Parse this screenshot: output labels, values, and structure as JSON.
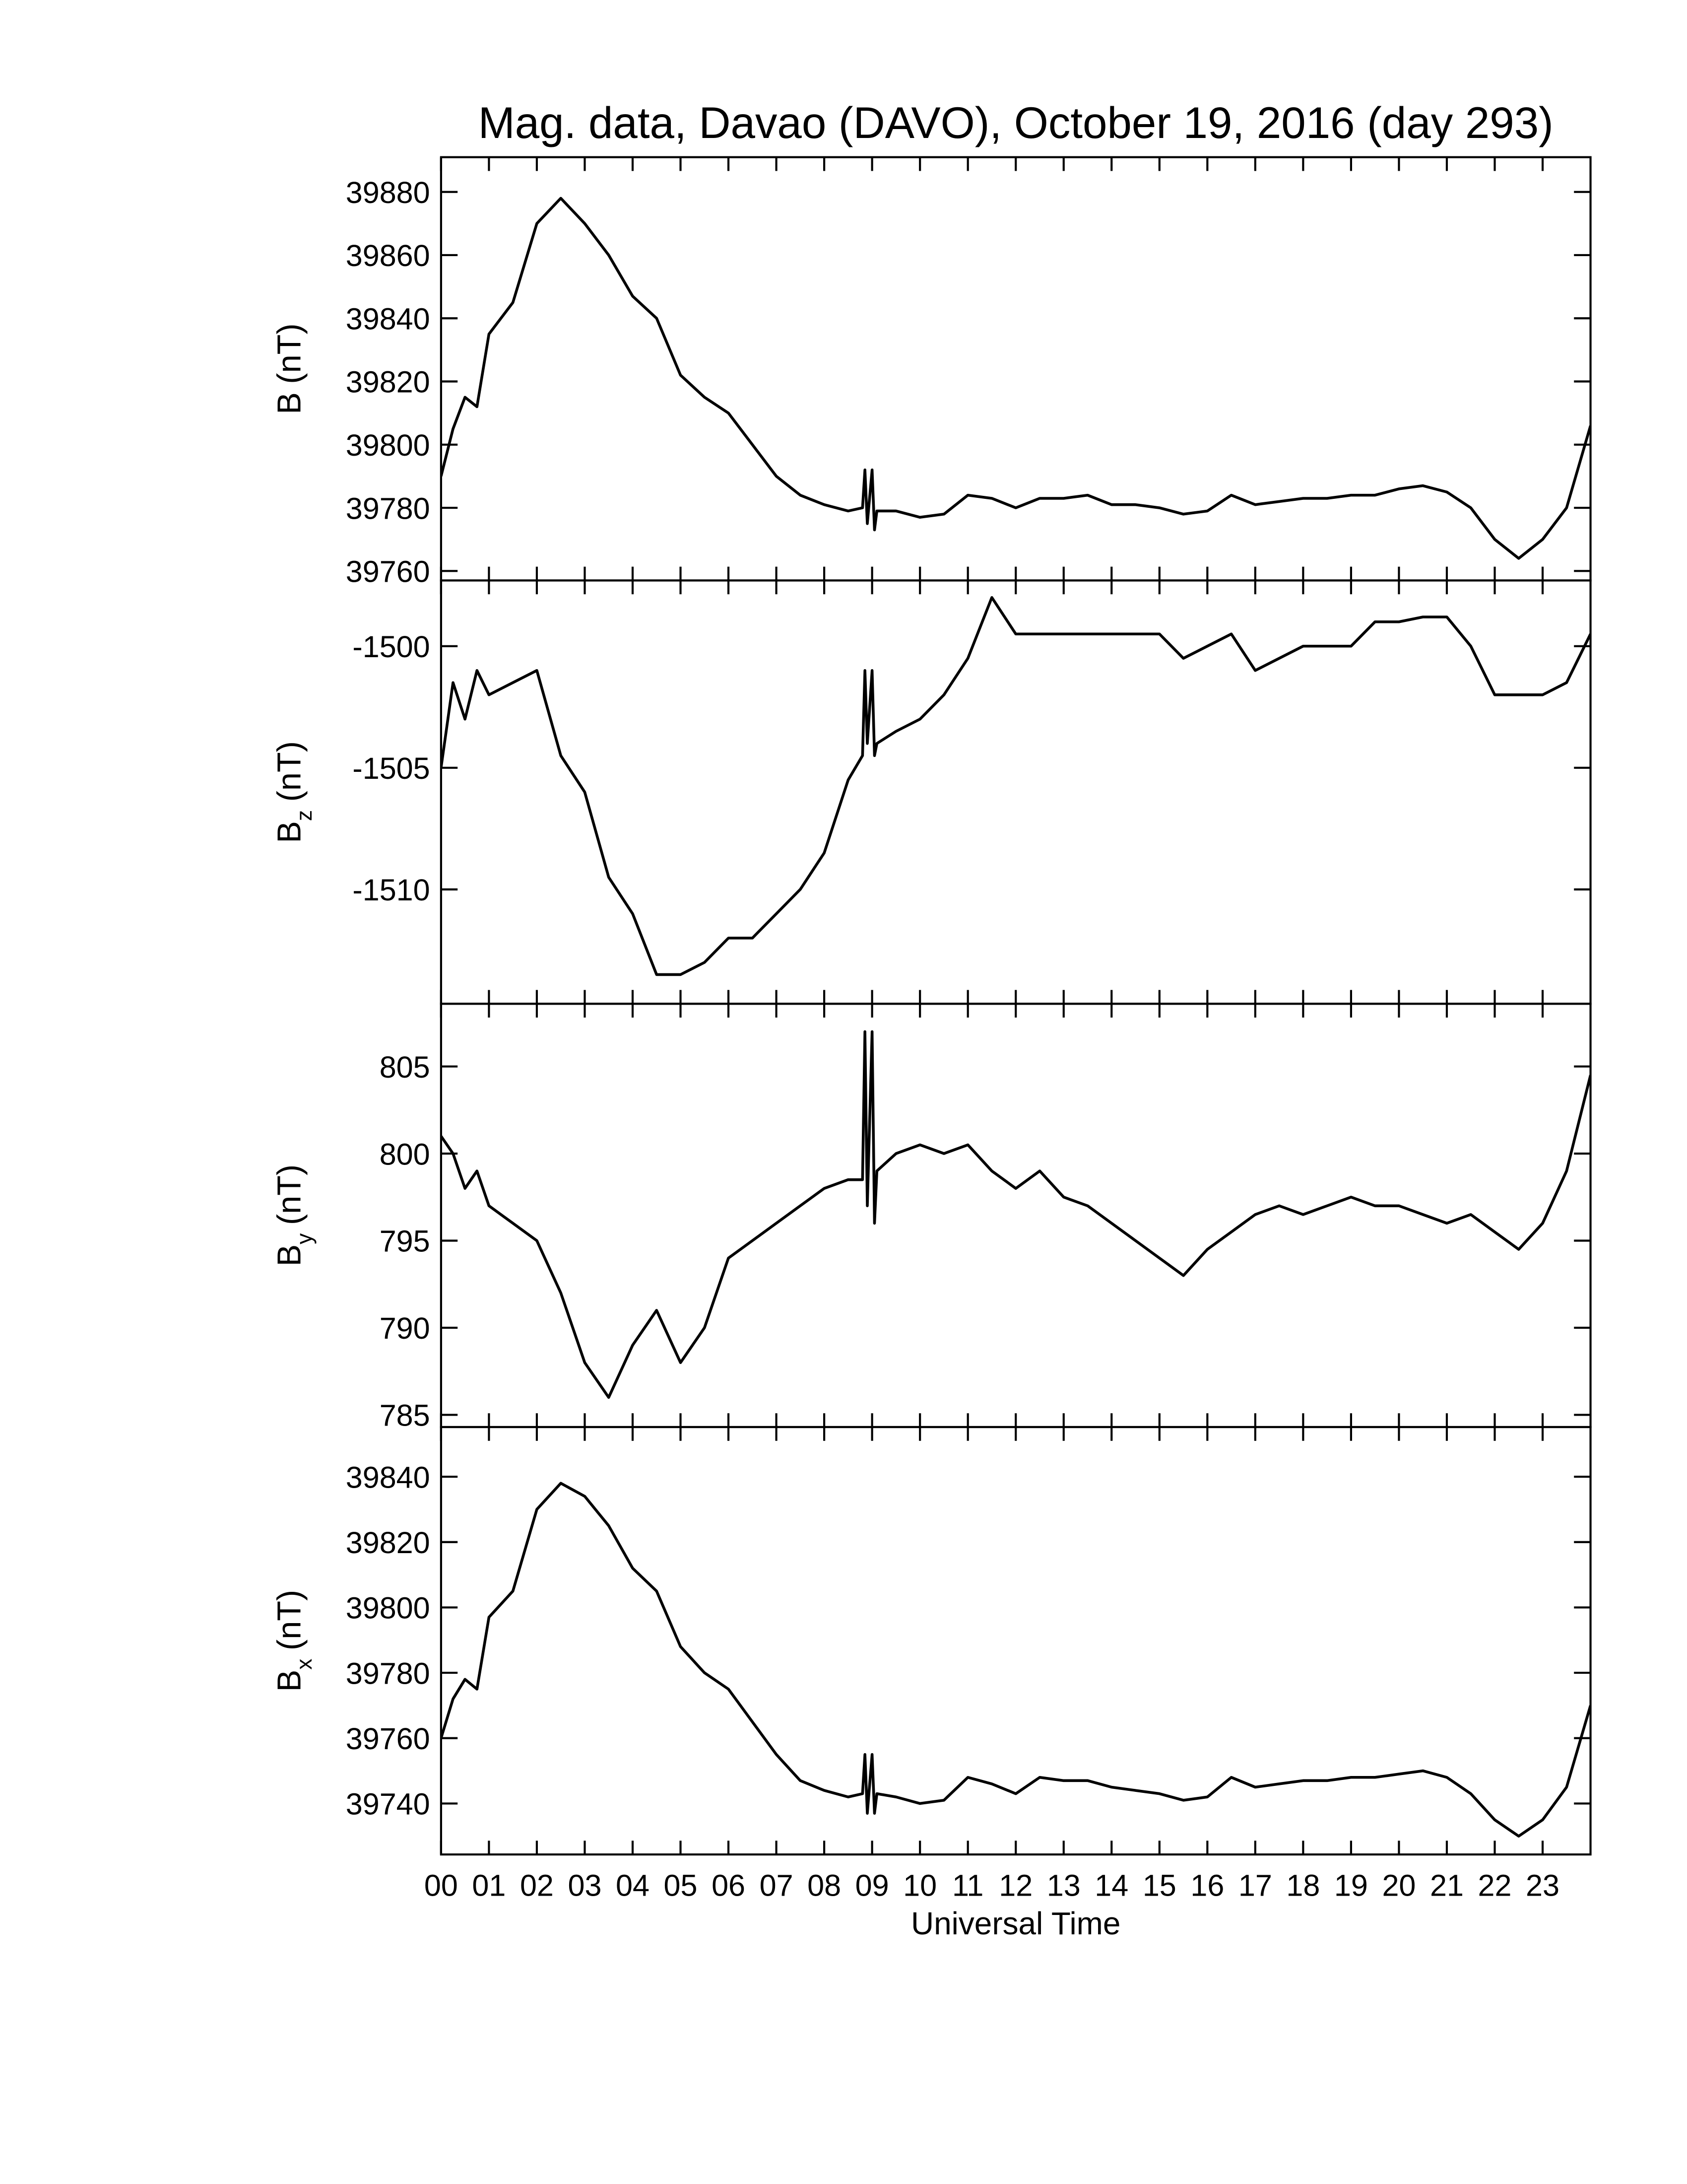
{
  "chart_data": [
    {
      "type": "line",
      "title": "Mag. data, Davao (DAVO), October 19, 2016 (day 293)",
      "ylabel": "B",
      "ylabel_unit": "(nT)",
      "color": "#000000",
      "x": [
        0,
        0.25,
        0.5,
        0.75,
        1,
        1.5,
        2,
        2.5,
        3,
        3.5,
        4,
        4.5,
        5,
        5.5,
        6,
        6.5,
        7,
        7.5,
        8,
        8.5,
        8.8,
        8.85,
        8.9,
        9.0,
        9.05,
        9.1,
        9.5,
        10,
        10.5,
        11,
        11.5,
        12,
        12.5,
        13,
        13.5,
        14,
        14.5,
        15,
        15.5,
        16,
        16.5,
        17,
        17.5,
        18,
        18.5,
        19,
        19.5,
        20,
        20.5,
        21,
        21.5,
        22,
        22.5,
        23,
        23.5,
        24
      ],
      "values": [
        39790,
        39805,
        39815,
        39812,
        39835,
        39845,
        39870,
        39878,
        39870,
        39860,
        39847,
        39840,
        39822,
        39815,
        39810,
        39800,
        39790,
        39784,
        39781,
        39779,
        39780,
        39792,
        39775,
        39792,
        39773,
        39779,
        39779,
        39777,
        39778,
        39784,
        39783,
        39780,
        39783,
        39783,
        39784,
        39781,
        39781,
        39780,
        39778,
        39779,
        39784,
        39781,
        39782,
        39783,
        39783,
        39784,
        39784,
        39786,
        39787,
        39785,
        39780,
        39770,
        39764,
        39770,
        39780,
        39806
      ],
      "xlim": [
        0,
        24
      ],
      "xticks": [
        0,
        1,
        2,
        3,
        4,
        5,
        6,
        7,
        8,
        9,
        10,
        11,
        12,
        13,
        14,
        15,
        16,
        17,
        18,
        19,
        20,
        21,
        22,
        23
      ],
      "ylim": [
        39757,
        39891
      ],
      "yticks": [
        39760,
        39780,
        39800,
        39820,
        39840,
        39860,
        39880
      ]
    },
    {
      "type": "line",
      "ylabel": "B",
      "ylabel_sub": "z",
      "ylabel_unit": "(nT)",
      "color": "#000000",
      "x": [
        0,
        0.25,
        0.5,
        0.75,
        1,
        1.5,
        2,
        2.5,
        3,
        3.5,
        4,
        4.5,
        5,
        5.5,
        6,
        6.5,
        7,
        7.5,
        8,
        8.5,
        8.8,
        8.85,
        8.9,
        9.0,
        9.05,
        9.1,
        9.5,
        10,
        10.5,
        11,
        11.5,
        12,
        12.5,
        13,
        13.5,
        14,
        14.5,
        15,
        15.5,
        16,
        16.5,
        17,
        17.5,
        18,
        18.5,
        19,
        19.5,
        20,
        20.5,
        21,
        21.5,
        22,
        22.5,
        23,
        23.5,
        24
      ],
      "values": [
        -1505,
        -1501.5,
        -1503,
        -1501,
        -1502,
        -1501.5,
        -1501,
        -1504.5,
        -1506,
        -1509.5,
        -1511,
        -1513.5,
        -1513.5,
        -1513,
        -1512,
        -1512,
        -1511,
        -1510,
        -1508.5,
        -1505.5,
        -1504.5,
        -1501,
        -1504,
        -1501,
        -1504.5,
        -1504,
        -1503.5,
        -1503,
        -1502,
        -1500.5,
        -1498,
        -1499.5,
        -1499.5,
        -1499.5,
        -1499.5,
        -1499.5,
        -1499.5,
        -1499.5,
        -1500.5,
        -1500,
        -1499.5,
        -1501,
        -1500.5,
        -1500,
        -1500,
        -1500,
        -1499,
        -1499,
        -1498.8,
        -1498.8,
        -1500,
        -1502,
        -1502,
        -1502,
        -1501.5,
        -1499.5
      ],
      "xlim": [
        0,
        24
      ],
      "xticks": [
        0,
        1,
        2,
        3,
        4,
        5,
        6,
        7,
        8,
        9,
        10,
        11,
        12,
        13,
        14,
        15,
        16,
        17,
        18,
        19,
        20,
        21,
        22,
        23
      ],
      "ylim": [
        -1514.7,
        -1497.3
      ],
      "yticks": [
        -1500,
        -1505,
        -1510
      ]
    },
    {
      "type": "line",
      "ylabel": "B",
      "ylabel_sub": "y",
      "ylabel_unit": "(nT)",
      "color": "#000000",
      "x": [
        0,
        0.25,
        0.5,
        0.75,
        1,
        1.5,
        2,
        2.5,
        3,
        3.5,
        4,
        4.5,
        5,
        5.5,
        6,
        6.5,
        7,
        7.5,
        8,
        8.5,
        8.8,
        8.85,
        8.9,
        9.0,
        9.05,
        9.1,
        9.5,
        10,
        10.5,
        11,
        11.5,
        12,
        12.5,
        13,
        13.5,
        14,
        14.5,
        15,
        15.5,
        16,
        16.5,
        17,
        17.5,
        18,
        18.5,
        19,
        19.5,
        20,
        20.5,
        21,
        21.5,
        22,
        22.5,
        23,
        23.5,
        24
      ],
      "values": [
        801,
        800,
        798,
        799,
        797,
        796,
        795,
        792,
        788,
        786,
        789,
        791,
        788,
        790,
        794,
        795,
        796,
        797,
        798,
        798.5,
        798.5,
        807,
        797,
        807,
        796,
        799,
        800,
        800.5,
        800,
        800.5,
        799,
        798,
        799,
        797.5,
        797,
        796,
        795,
        794,
        793,
        794.5,
        795.5,
        796.5,
        797,
        796.5,
        797,
        797.5,
        797,
        797,
        796.5,
        796,
        796.5,
        795.5,
        794.5,
        796,
        799,
        804.5
      ],
      "xlim": [
        0,
        24
      ],
      "xticks": [
        0,
        1,
        2,
        3,
        4,
        5,
        6,
        7,
        8,
        9,
        10,
        11,
        12,
        13,
        14,
        15,
        16,
        17,
        18,
        19,
        20,
        21,
        22,
        23
      ],
      "ylim": [
        784.3,
        808.6
      ],
      "yticks": [
        785,
        790,
        795,
        800,
        805
      ]
    },
    {
      "type": "line",
      "ylabel": "B",
      "ylabel_sub": "x",
      "ylabel_unit": "(nT)",
      "xlabel": "Universal Time",
      "color": "#000000",
      "x": [
        0,
        0.25,
        0.5,
        0.75,
        1,
        1.5,
        2,
        2.5,
        3,
        3.5,
        4,
        4.5,
        5,
        5.5,
        6,
        6.5,
        7,
        7.5,
        8,
        8.5,
        8.8,
        8.85,
        8.9,
        9.0,
        9.05,
        9.1,
        9.5,
        10,
        10.5,
        11,
        11.5,
        12,
        12.5,
        13,
        13.5,
        14,
        14.5,
        15,
        15.5,
        16,
        16.5,
        17,
        17.5,
        18,
        18.5,
        19,
        19.5,
        20,
        20.5,
        21,
        21.5,
        22,
        22.5,
        23,
        23.5,
        24
      ],
      "values": [
        39760,
        39772,
        39778,
        39775,
        39797,
        39805,
        39830,
        39838,
        39834,
        39825,
        39812,
        39805,
        39788,
        39780,
        39775,
        39765,
        39755,
        39747,
        39744,
        39742,
        39743,
        39755,
        39737,
        39755,
        39737,
        39743,
        39742,
        39740,
        39741,
        39748,
        39746,
        39743,
        39748,
        39747,
        39747,
        39745,
        39744,
        39743,
        39741,
        39742,
        39748,
        39745,
        39746,
        39747,
        39747,
        39748,
        39748,
        39749,
        39750,
        39748,
        39743,
        39735,
        39730,
        39735,
        39745,
        39770
      ],
      "xlim": [
        0,
        24
      ],
      "xticks": [
        {
          "value": 0,
          "label": "00"
        },
        {
          "value": 1,
          "label": "01"
        },
        {
          "value": 2,
          "label": "02"
        },
        {
          "value": 3,
          "label": "03"
        },
        {
          "value": 4,
          "label": "04"
        },
        {
          "value": 5,
          "label": "05"
        },
        {
          "value": 6,
          "label": "06"
        },
        {
          "value": 7,
          "label": "07"
        },
        {
          "value": 8,
          "label": "08"
        },
        {
          "value": 9,
          "label": "09"
        },
        10,
        11,
        12,
        13,
        14,
        15,
        16,
        17,
        18,
        19,
        20,
        21,
        22,
        23
      ],
      "ylim": [
        39724.4,
        39855.2
      ],
      "yticks": [
        39740,
        39760,
        39780,
        39800,
        39820,
        39840
      ]
    }
  ]
}
